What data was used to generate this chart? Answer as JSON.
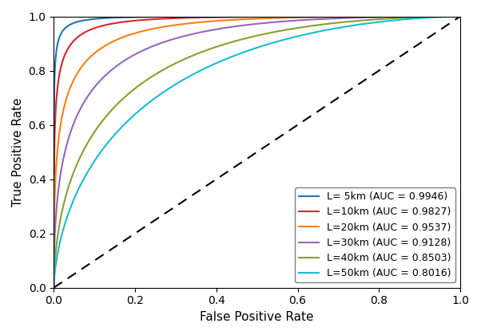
{
  "title": "",
  "xlabel": "False Positive Rate",
  "ylabel": "True Positive Rate",
  "xlim": [
    0.0,
    1.0
  ],
  "ylim": [
    0.0,
    1.0
  ],
  "curves": [
    {
      "label": "L= 5km (AUC = 0.9946)",
      "color": "#1f77b4",
      "auc": 0.9946,
      "beta_a": 0.15,
      "beta_b": 2.0
    },
    {
      "label": "L=10km (AUC = 0.9827)",
      "color": "#d62728",
      "auc": 0.9827,
      "beta_a": 0.25,
      "beta_b": 2.0
    },
    {
      "label": "L=20km (AUC = 0.9537)",
      "color": "#ff7f0e",
      "auc": 0.9537,
      "beta_a": 0.5,
      "beta_b": 2.0
    },
    {
      "label": "L=30km (AUC = 0.9128)",
      "color": "#9467bd",
      "auc": 0.9128,
      "beta_a": 1.0,
      "beta_b": 2.0
    },
    {
      "label": "L=40km (AUC = 0.8503)",
      "color": "#8c9e2a",
      "auc": 0.8503,
      "beta_a": 1.8,
      "beta_b": 2.0
    },
    {
      "label": "L=50km (AUC = 0.8016)",
      "color": "#17becf",
      "auc": 0.8016,
      "beta_a": 2.8,
      "beta_b": 2.0
    }
  ],
  "legend_loc": "lower right",
  "diagonal_color": "black",
  "linewidth": 1.5,
  "tick_fontsize": 10,
  "label_fontsize": 11,
  "legend_fontsize": 9
}
